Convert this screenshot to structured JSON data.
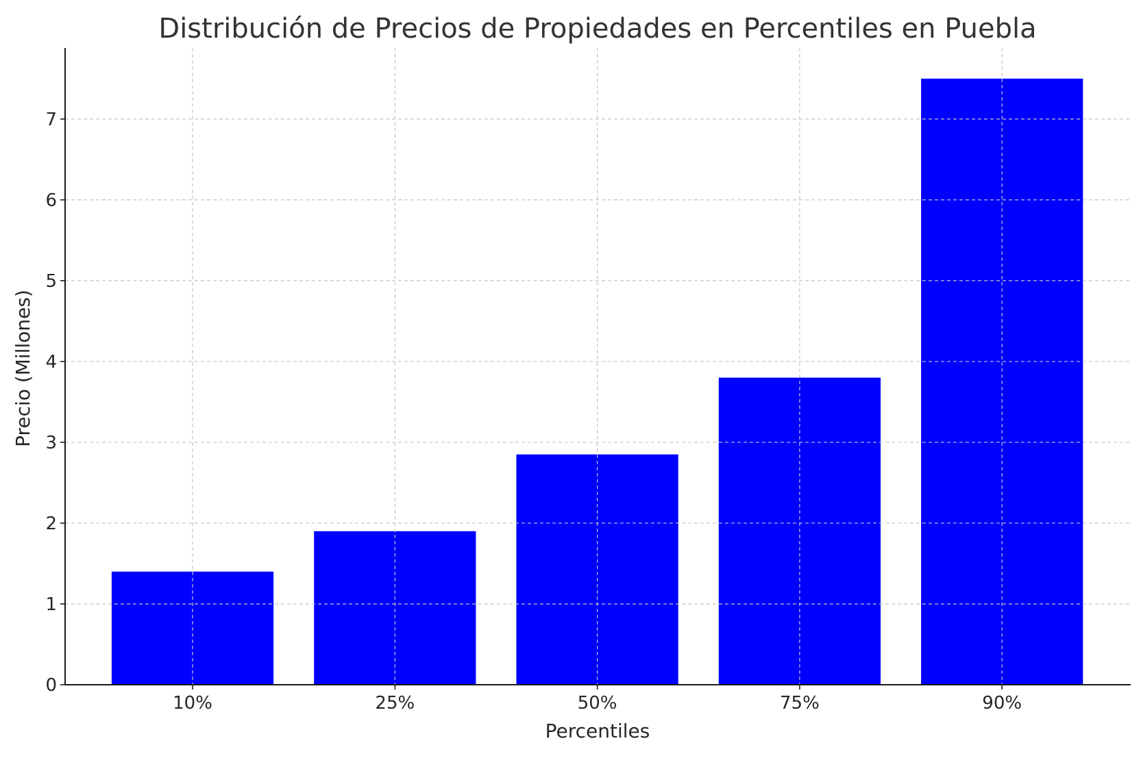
{
  "chart_data": {
    "type": "bar",
    "title": "Distribución de Precios de Propiedades en Percentiles en Puebla",
    "xlabel": "Percentiles",
    "ylabel": "Precio (Millones)",
    "categories": [
      "10%",
      "25%",
      "50%",
      "75%",
      "90%"
    ],
    "values": [
      1.4,
      1.9,
      2.85,
      3.8,
      7.5
    ],
    "ylim": [
      0,
      7.88
    ],
    "yticks": [
      0,
      1,
      2,
      3,
      4,
      5,
      6,
      7
    ],
    "grid": true,
    "bar_color": "#0000ff"
  }
}
